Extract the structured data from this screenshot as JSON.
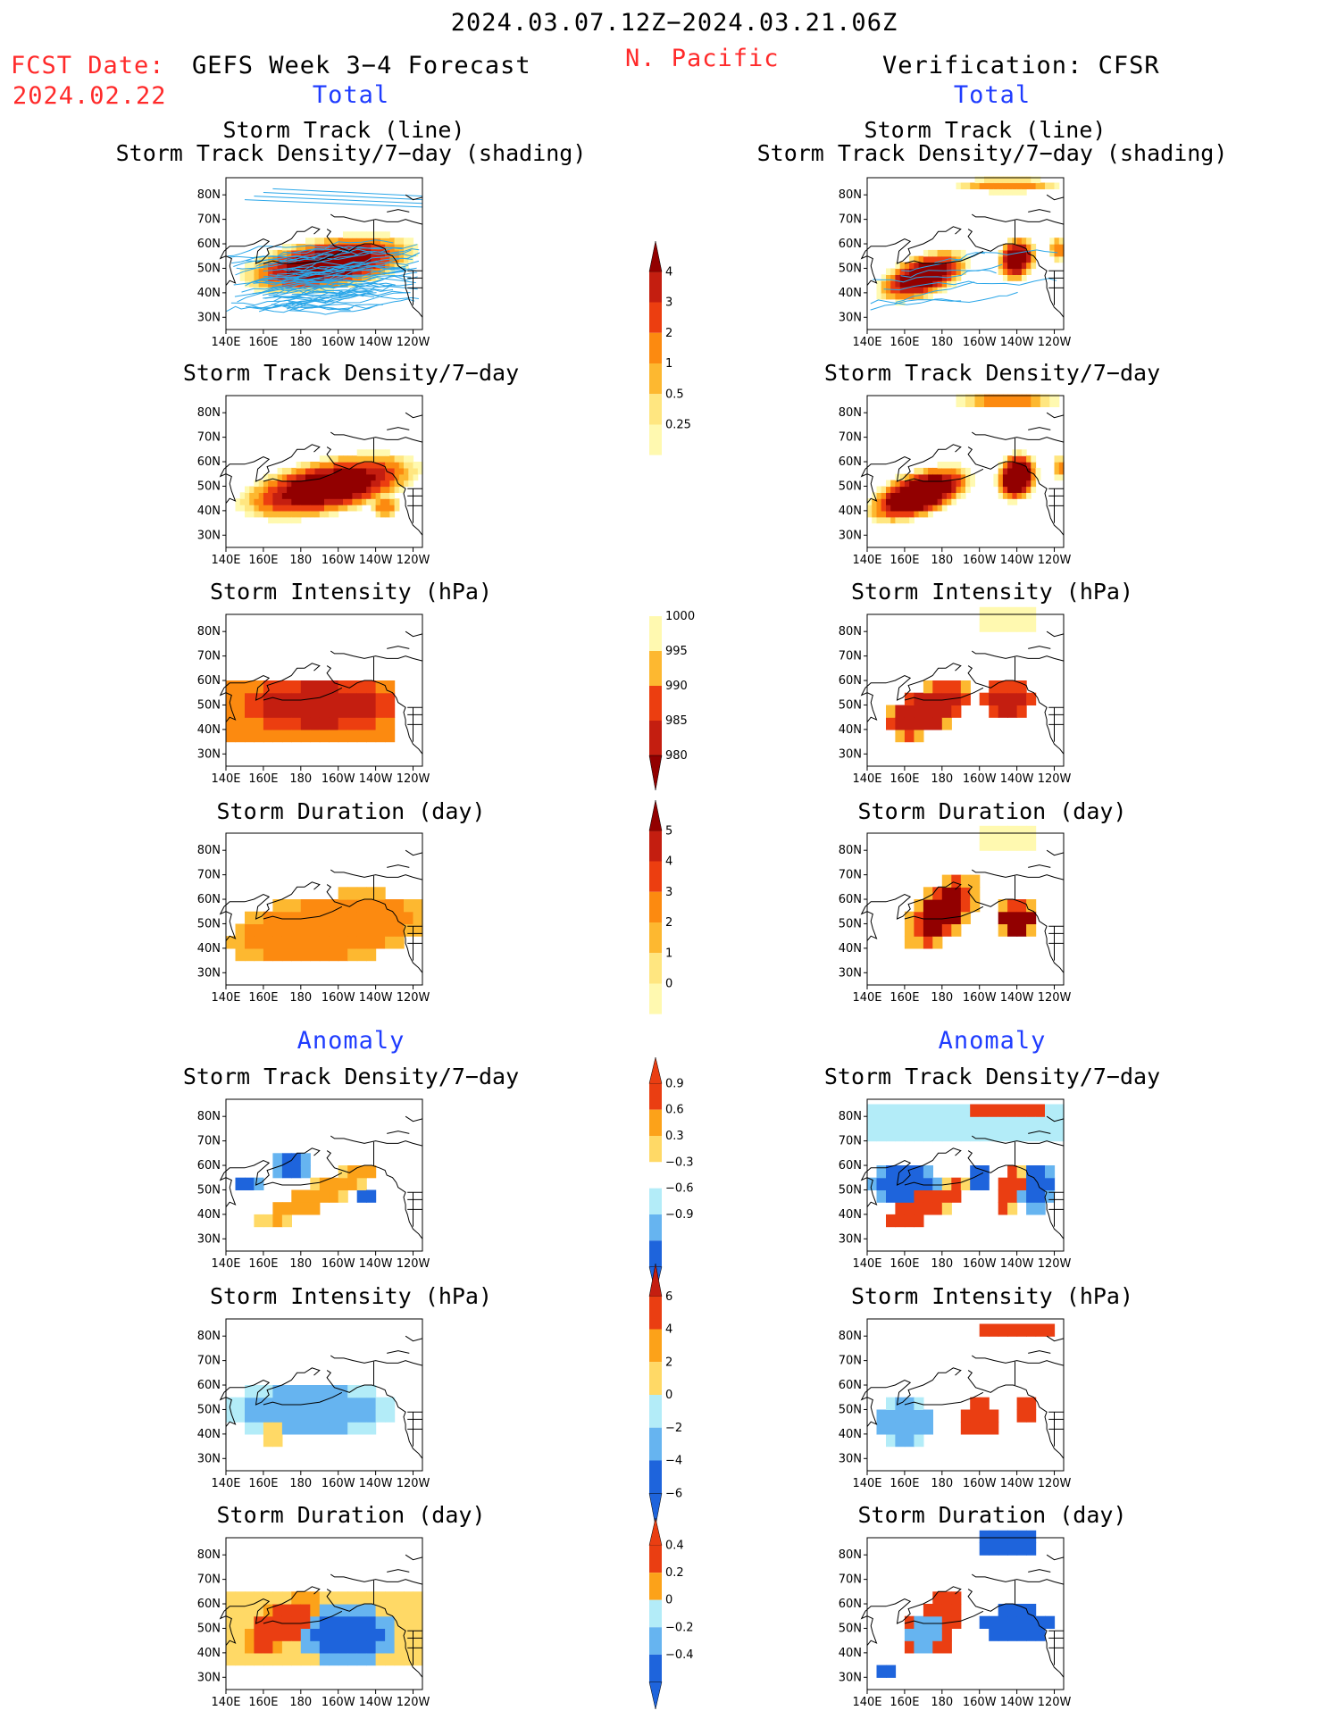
{
  "header": {
    "date_range": "2024.03.07.12Z−2024.03.21.06Z",
    "fcst_label": "FCST Date:",
    "fcst_date": "2024.02.22",
    "left_title": "GEFS Week 3−4 Forecast",
    "region": "N. Pacific",
    "right_title": "Verification: CFSR"
  },
  "sections": {
    "total": "Total",
    "anomaly": "Anomaly"
  },
  "panel_titles": {
    "track_line": "Storm Track (line)",
    "track_shading": "Storm Track Density/7−day (shading)",
    "density": "Storm Track Density/7−day",
    "intensity": "Storm Intensity (hPa)",
    "duration": "Storm Duration (day)"
  },
  "axes": {
    "x_ticks": [
      "140E",
      "160E",
      "180",
      "160W",
      "140W",
      "120W"
    ],
    "y_ticks": [
      "80N",
      "70N",
      "60N",
      "50N",
      "40N",
      "30N"
    ]
  },
  "colorbars": {
    "density_total": [
      "4",
      "3",
      "2",
      "1",
      "0.5",
      "0.25"
    ],
    "intensity_total": [
      "1000",
      "995",
      "990",
      "985",
      "980"
    ],
    "duration_total": [
      "5",
      "4",
      "3",
      "2",
      "1",
      "0"
    ],
    "density_anom": [
      "0.9",
      "0.6",
      "0.3",
      "−0.3",
      "−0.6",
      "−0.9"
    ],
    "intensity_anom": [
      "6",
      "4",
      "2",
      "0",
      "−2",
      "−4",
      "−6"
    ],
    "duration_anom": [
      "0.4",
      "0.2",
      "0",
      "−0.2",
      "−0.4"
    ]
  },
  "colors": {
    "warm": [
      "#fff9b0",
      "#ffe680",
      "#fdb830",
      "#fc8a10",
      "#ec3e10",
      "#c41e10",
      "#920000"
    ],
    "anom_pos": [
      "#ffd966",
      "#fca219",
      "#ea3e12"
    ],
    "anom_neg": [
      "#b3ecf8",
      "#66b4f0",
      "#1e64dc"
    ],
    "track_line": "#2aa6e8",
    "title_red": "#ff2a2a",
    "title_blue": "#1f3cff"
  }
}
